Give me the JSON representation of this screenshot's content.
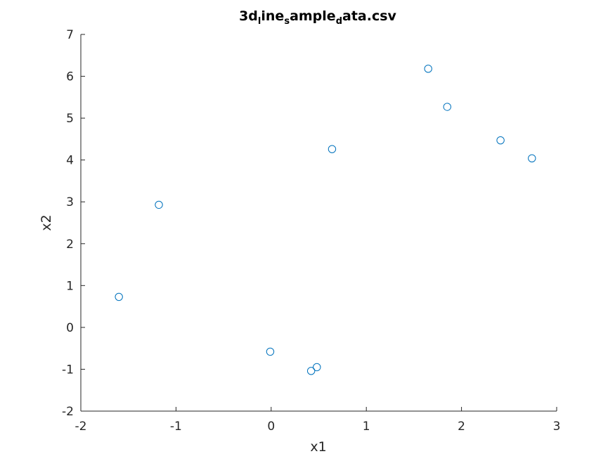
{
  "chart_data": {
    "type": "scatter",
    "title_parts": [
      {
        "text": "3d",
        "sub": false
      },
      {
        "text": "l",
        "sub": true
      },
      {
        "text": "ine",
        "sub": false
      },
      {
        "text": "s",
        "sub": true
      },
      {
        "text": "ample",
        "sub": false
      },
      {
        "text": "d",
        "sub": true
      },
      {
        "text": "ata.csv",
        "sub": false
      }
    ],
    "xlabel": "x1",
    "ylabel": "x2",
    "xlim": [
      -2,
      3
    ],
    "ylim": [
      -2,
      7
    ],
    "xticks": [
      -2,
      -1,
      0,
      1,
      2,
      3
    ],
    "xtick_labels": [
      "-2",
      "-1",
      "0",
      "1",
      "2",
      "3"
    ],
    "yticks": [
      -2,
      -1,
      0,
      1,
      2,
      3,
      4,
      5,
      6,
      7
    ],
    "ytick_labels": [
      "-2",
      "-1",
      "0",
      "1",
      "2",
      "3",
      "4",
      "5",
      "6",
      "7"
    ],
    "grid": false,
    "marker": "open-circle",
    "series": [
      {
        "color": "#0072BD",
        "x": [
          -1.6,
          -1.18,
          -0.01,
          0.42,
          0.48,
          0.64,
          1.65,
          1.85,
          2.41,
          2.74
        ],
        "y": [
          0.73,
          2.93,
          -0.58,
          -1.04,
          -0.95,
          4.26,
          6.18,
          5.27,
          4.47,
          4.04
        ]
      }
    ]
  }
}
